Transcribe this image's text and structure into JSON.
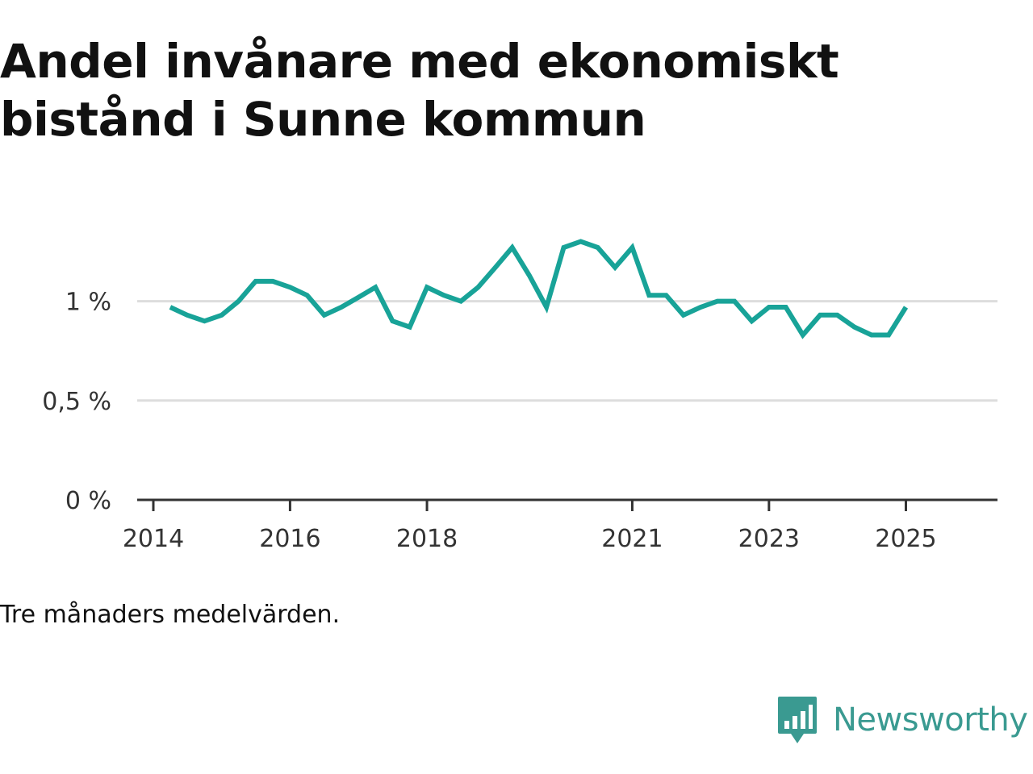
{
  "title": "Andel invånare med ekonomiskt bistånd i Sunne kommun",
  "note": "Tre månaders medelvärden.",
  "brand": {
    "name": "Newsworthy",
    "logo_icon": "bar-chart-speech-bubble-icon",
    "color": "#3a9a91"
  },
  "chart_data": {
    "type": "line",
    "title": "Andel invånare med ekonomiskt bistånd i Sunne kommun",
    "xlabel": "",
    "ylabel": "",
    "ylim": [
      0,
      1.4
    ],
    "xlim": [
      "2014-01-01",
      "2025-12-01"
    ],
    "grid": true,
    "y_ticks": [
      {
        "value": 0,
        "label": "0 %"
      },
      {
        "value": 0.5,
        "label": "0,5 %"
      },
      {
        "value": 1,
        "label": "1 %"
      }
    ],
    "x_ticks": [
      {
        "value": "2014-01-01",
        "label": "2014"
      },
      {
        "value": "2016-01-01",
        "label": "2016"
      },
      {
        "value": "2018-01-01",
        "label": "2018"
      },
      {
        "value": "2021-01-01",
        "label": "2021"
      },
      {
        "value": "2023-01-01",
        "label": "2023"
      },
      {
        "value": "2025-01-01",
        "label": "2025"
      }
    ],
    "series": [
      {
        "color": "#18a398",
        "points": [
          [
            "2014-04-01",
            0.97
          ],
          [
            "2014-07-01",
            0.93
          ],
          [
            "2014-10-01",
            0.9
          ],
          [
            "2015-01-01",
            0.93
          ],
          [
            "2015-04-01",
            1.0
          ],
          [
            "2015-07-01",
            1.1
          ],
          [
            "2015-10-01",
            1.1
          ],
          [
            "2016-01-01",
            1.07
          ],
          [
            "2016-04-01",
            1.03
          ],
          [
            "2016-07-01",
            0.93
          ],
          [
            "2016-10-01",
            0.97
          ],
          [
            "2017-01-01",
            1.02
          ],
          [
            "2017-04-01",
            1.07
          ],
          [
            "2017-07-01",
            0.9
          ],
          [
            "2017-10-01",
            0.87
          ],
          [
            "2018-01-01",
            1.07
          ],
          [
            "2018-04-01",
            1.03
          ],
          [
            "2018-07-01",
            1.0
          ],
          [
            "2018-10-01",
            1.07
          ],
          [
            "2019-01-01",
            1.17
          ],
          [
            "2019-04-01",
            1.27
          ],
          [
            "2019-07-01",
            1.13
          ],
          [
            "2019-10-01",
            0.97
          ],
          [
            "2020-01-01",
            1.27
          ],
          [
            "2020-04-01",
            1.3
          ],
          [
            "2020-07-01",
            1.27
          ],
          [
            "2020-10-01",
            1.17
          ],
          [
            "2021-01-01",
            1.27
          ],
          [
            "2021-04-01",
            1.03
          ],
          [
            "2021-07-01",
            1.03
          ],
          [
            "2021-10-01",
            0.93
          ],
          [
            "2022-01-01",
            0.97
          ],
          [
            "2022-04-01",
            1.0
          ],
          [
            "2022-07-01",
            1.0
          ],
          [
            "2022-10-01",
            0.9
          ],
          [
            "2023-01-01",
            0.97
          ],
          [
            "2023-04-01",
            0.97
          ],
          [
            "2023-07-01",
            0.83
          ],
          [
            "2023-10-01",
            0.93
          ],
          [
            "2024-01-01",
            0.93
          ],
          [
            "2024-04-01",
            0.87
          ],
          [
            "2024-07-01",
            0.83
          ],
          [
            "2024-10-01",
            0.83
          ],
          [
            "2025-01-01",
            0.97
          ]
        ]
      }
    ]
  }
}
